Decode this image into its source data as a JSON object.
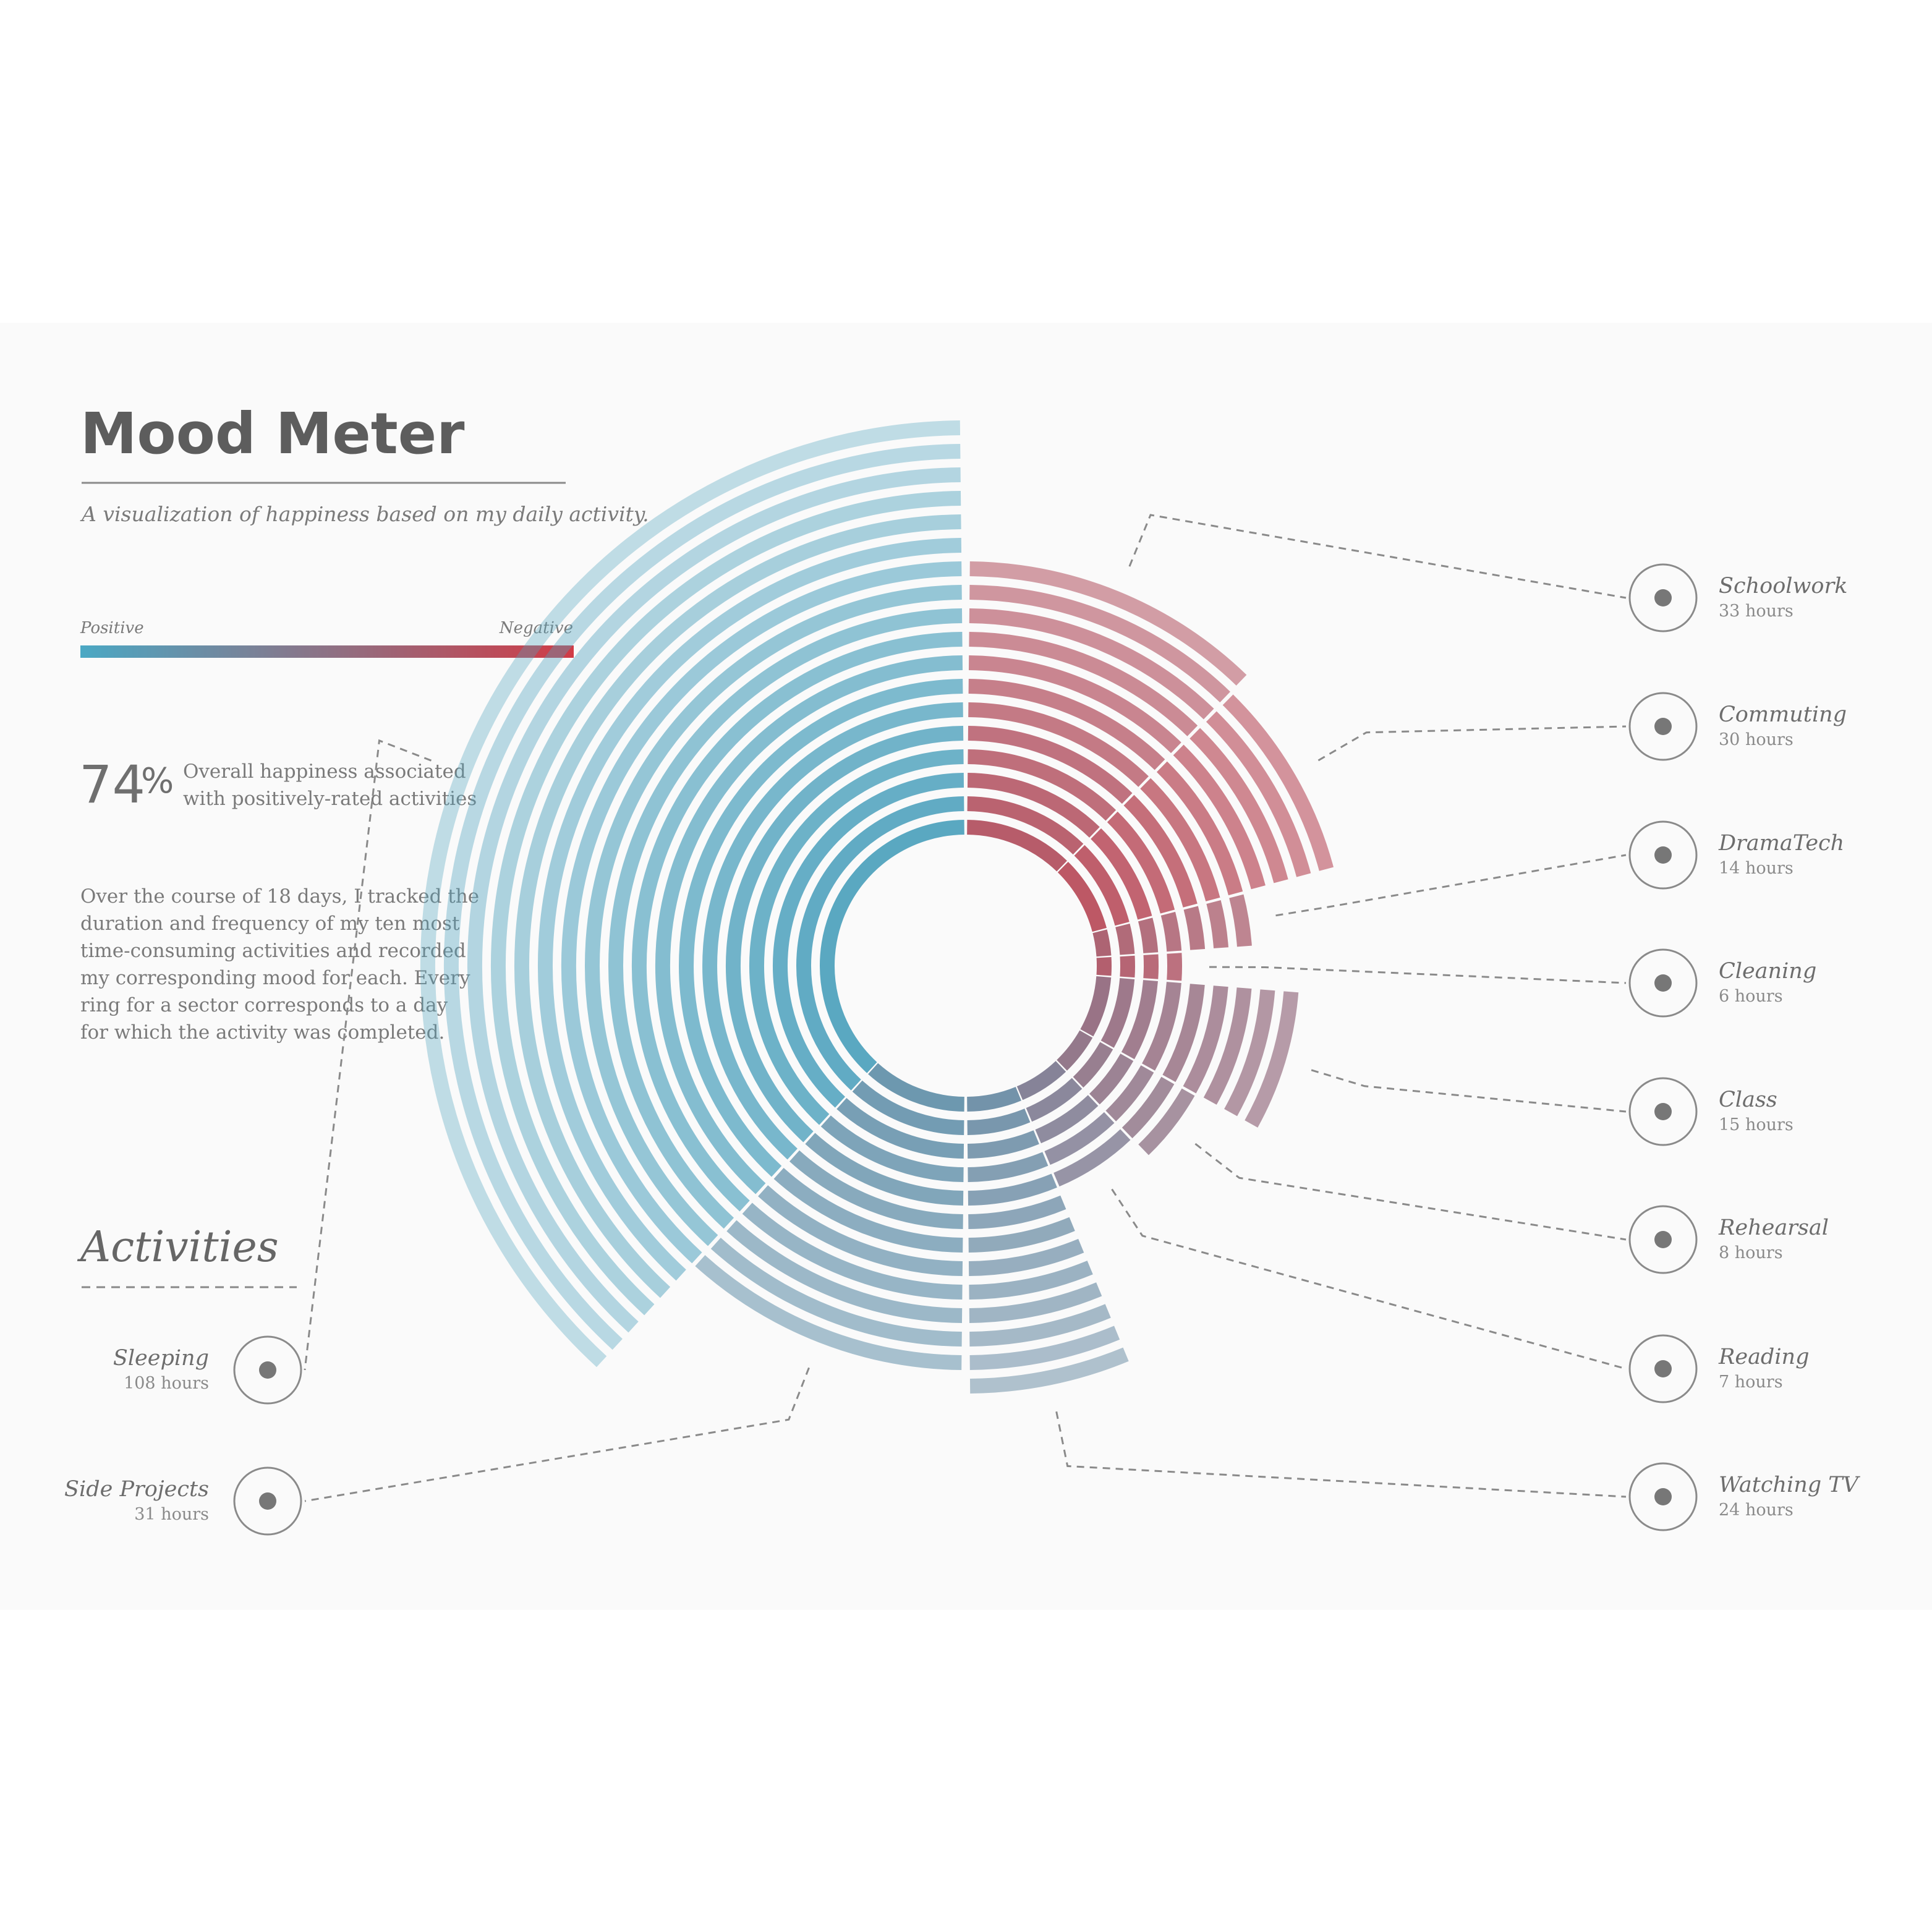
{
  "title": "Mood Meter",
  "subtitle": "A visualization of happiness based on my daily activity.",
  "legend": {
    "positive_label": "Positive",
    "negative_label": "Negative",
    "positive_color": "#4aa8c4",
    "negative_color": "#d13b46"
  },
  "stat": {
    "value": "74",
    "unit": "%",
    "line1": "Overall happiness associated",
    "line2": "with positively-rated activities"
  },
  "description": [
    "Over the course of 18 days, I tracked the",
    "duration and frequency of my ten most",
    "time-consuming activities and recorded",
    "my corresponding mood for each. Every",
    "ring for a sector corresponds to a  day",
    "for which the activity was completed."
  ],
  "activities_heading": "Activities",
  "chart_data": {
    "type": "radial-ring",
    "activities": [
      {
        "name": "Schoolwork",
        "hours": "33 hours",
        "icon": "pencil-icon",
        "days": 12,
        "mood": 0.78
      },
      {
        "name": "Commuting",
        "hours": "30 hours",
        "icon": "car-icon",
        "days": 11,
        "mood": 0.82
      },
      {
        "name": "DramaTech",
        "hours": "14 hours",
        "icon": "theater-masks-icon",
        "days": 7,
        "mood": 0.7
      },
      {
        "name": "Cleaning",
        "hours": "6 hours",
        "icon": "spray-bottle-icon",
        "days": 4,
        "mood": 0.75
      },
      {
        "name": "Class",
        "hours": "15 hours",
        "icon": "graduation-cap-icon",
        "days": 9,
        "mood": 0.55
      },
      {
        "name": "Rehearsal",
        "hours": "8 hours",
        "icon": "music-note-icon",
        "days": 6,
        "mood": 0.5
      },
      {
        "name": "Reading",
        "hours": "7 hours",
        "icon": "book-icon",
        "days": 5,
        "mood": 0.4
      },
      {
        "name": "Watching TV",
        "hours": "24 hours",
        "icon": "tv-icon",
        "days": 13,
        "mood": 0.25
      },
      {
        "name": "Side Projects",
        "hours": "31 hours",
        "icon": "code-icon",
        "days": 12,
        "mood": 0.2
      },
      {
        "name": "Sleeping",
        "hours": "108 hours",
        "icon": "bed-icon",
        "days": 18,
        "mood": 0.05
      }
    ]
  }
}
